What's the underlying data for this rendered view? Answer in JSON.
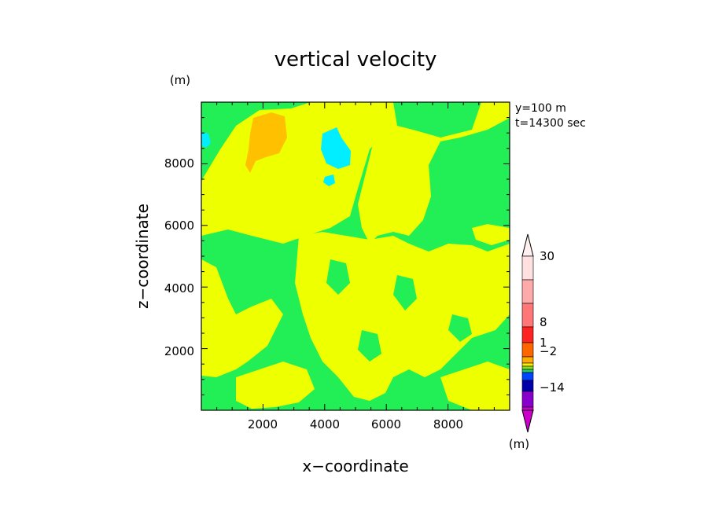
{
  "chart_data": {
    "type": "heatmap",
    "title": "vertical velocity",
    "xlabel": "x−coordinate",
    "ylabel": "z−coordinate",
    "x_unit": "(m)",
    "y_unit": "(m)",
    "annotations": [
      "y=100 m",
      "t=14300 sec"
    ],
    "xlim": [
      0,
      10000
    ],
    "ylim": [
      0,
      10000
    ],
    "x_ticks": [
      2000,
      4000,
      6000,
      8000
    ],
    "y_ticks": [
      2000,
      4000,
      6000,
      8000
    ],
    "x_tick_labels": [
      "2000",
      "4000",
      "6000",
      "8000"
    ],
    "y_tick_labels": [
      "2000",
      "4000",
      "6000",
      "8000"
    ],
    "colorbar": {
      "unit": "(m)",
      "labels": [
        {
          "text": "30",
          "level": 30
        },
        {
          "text": "8",
          "level": 8
        },
        {
          "text": "1",
          "level": 1
        },
        {
          "text": "−2",
          "level": -2
        },
        {
          "text": "−14",
          "level": -14
        }
      ],
      "colors": [
        "#cc00cc",
        "#8800cc",
        "#0000aa",
        "#0044ff",
        "#22cc66",
        "#88dd22",
        "#ffee00",
        "#ffaa00",
        "#ff6600",
        "#ff2222",
        "#ff7777",
        "#ffaaaa",
        "#ffcccc",
        "#ffe0e0"
      ]
    },
    "fields": [
      {
        "name": "green",
        "color": "#22ee55"
      },
      {
        "name": "yellow",
        "color": "#eeff00"
      },
      {
        "name": "orange",
        "color": "#ffc000"
      },
      {
        "name": "cyan",
        "color": "#00eeff"
      }
    ]
  }
}
